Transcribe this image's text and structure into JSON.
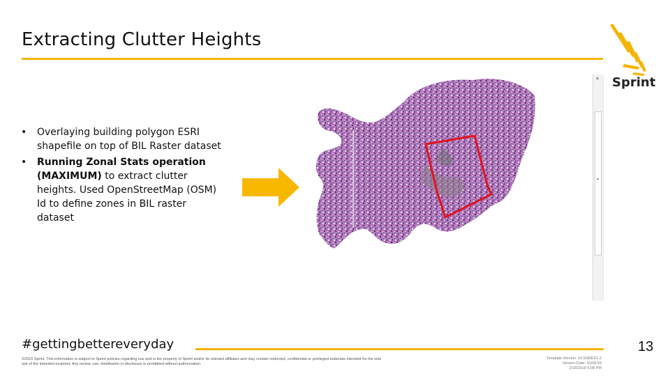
{
  "slide": {
    "title": "Extracting Clutter Heights",
    "bullets": [
      {
        "plain_intro": "",
        "bold": "",
        "text": "Overlaying building polygon ESRI shapefile on top of BIL Raster dataset"
      },
      {
        "bold": "Running Zonal Stats operation (MAXIMUM)",
        "text": " to extract clutter heights. Used OpenStreetMap (OSM) Id to define zones in BIL raster dataset"
      }
    ],
    "hashtag": "#gettingbettereveryday",
    "page_number": "13",
    "legal": "©2016 Sprint. This information is subject to Sprint policies regarding use and is the property of Sprint and/or its relevant affiliates and may contain restricted, confidential or privileged materials intended for the sole use of the intended recipient. Any review, use, distribution or disclosure is prohibited without authorization.",
    "template_info": {
      "line1": "Template Version: 16.9GBED1.2",
      "line2": "Version Date: 01/05/16",
      "line3": "2/18/2018 5:08 PM"
    }
  },
  "brand": {
    "name": "Sprint",
    "accent_color": "#f4b400",
    "highlight_color": "#e0141e"
  },
  "icons": {
    "logo": "sprint-logo-icon",
    "arrow": "right-arrow-icon"
  }
}
